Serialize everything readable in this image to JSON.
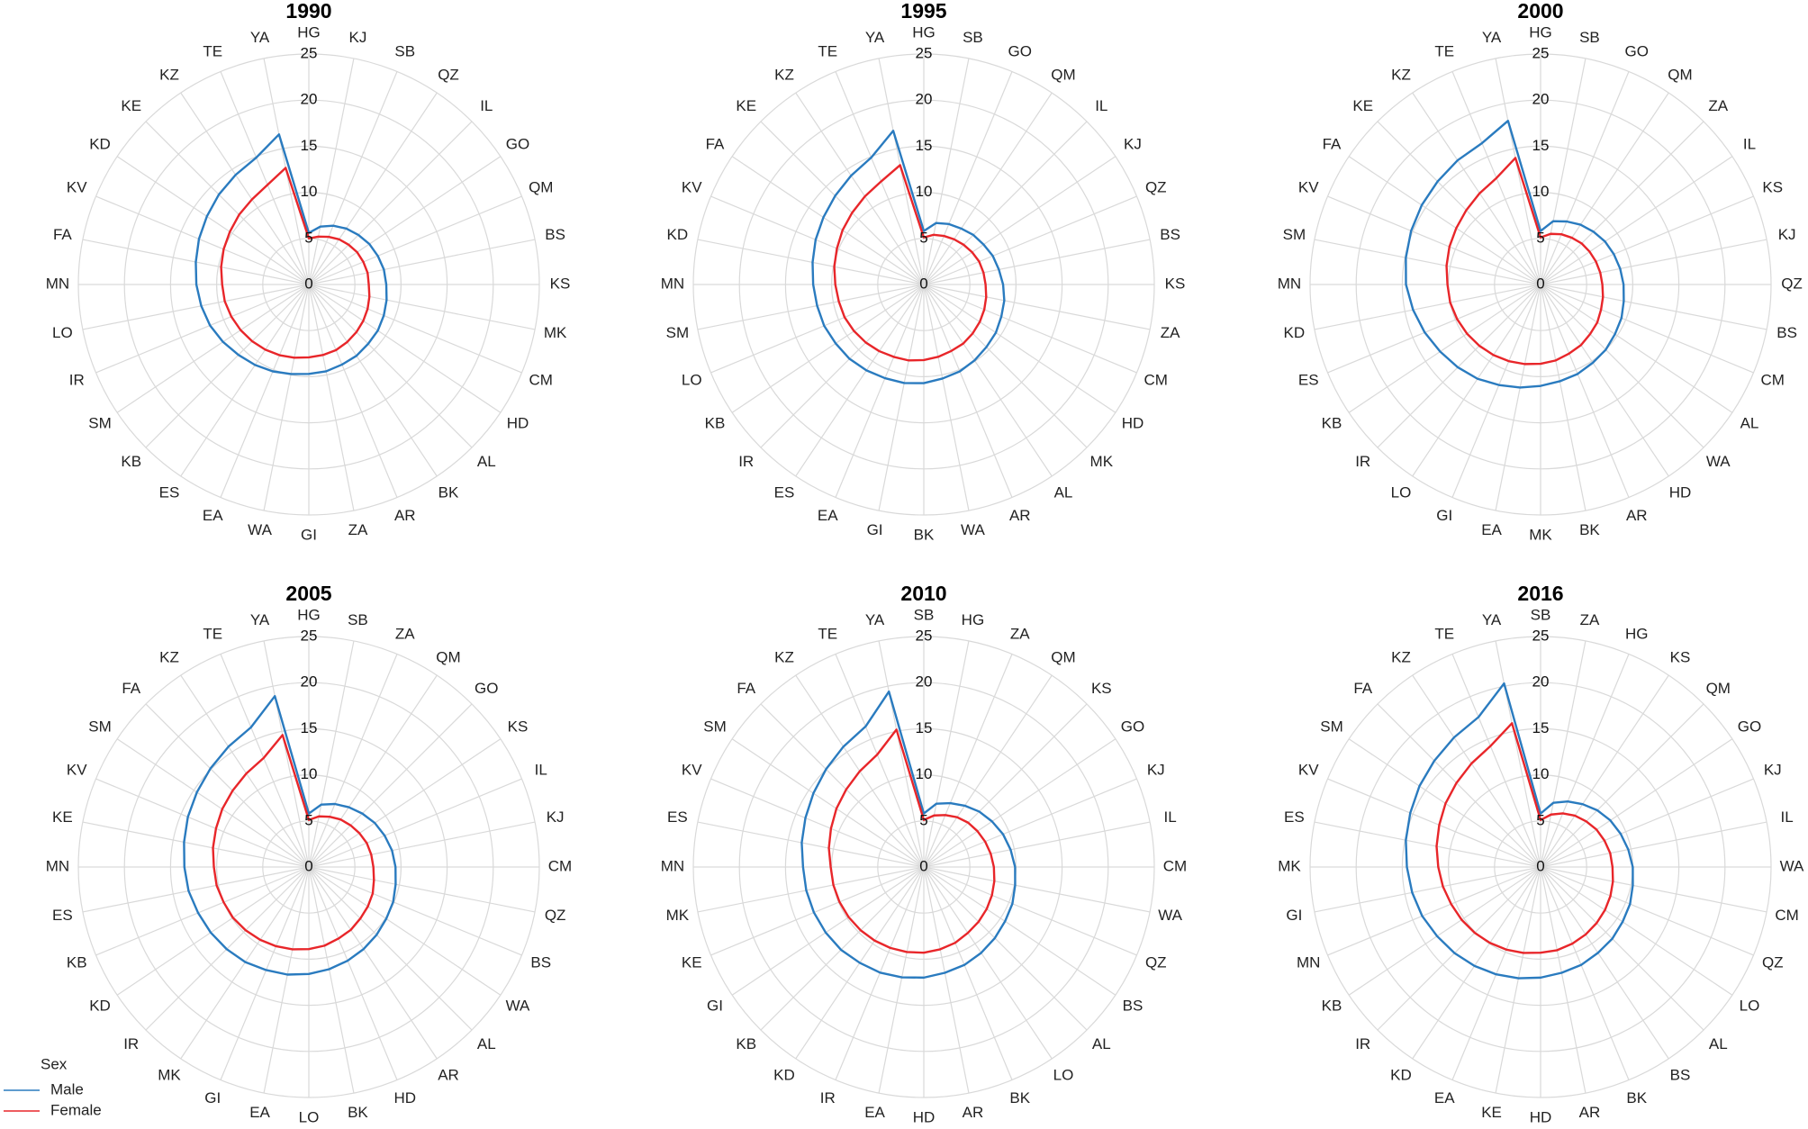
{
  "chart_data": [
    {
      "type": "radar",
      "title": "1990",
      "legend_title": "Sex",
      "ylim": [
        0,
        25
      ],
      "yticks": [
        0,
        5,
        10,
        15,
        20,
        25
      ],
      "grid": true,
      "categories": [
        "HG",
        "KJ",
        "SB",
        "QZ",
        "IL",
        "GO",
        "QM",
        "BS",
        "KS",
        "MK",
        "CM",
        "HD",
        "AL",
        "BK",
        "AR",
        "ZA",
        "GI",
        "WA",
        "EA",
        "ES",
        "KB",
        "SM",
        "IR",
        "LO",
        "MN",
        "FA",
        "KV",
        "KD",
        "KE",
        "KZ",
        "TE",
        "YA"
      ],
      "series": [
        {
          "name": "Male",
          "color": "#2a7bbf",
          "values": [
            5.6,
            6.4,
            6.9,
            7.3,
            7.6,
            7.9,
            8.1,
            8.3,
            8.4,
            8.6,
            8.8,
            9.0,
            9.1,
            9.3,
            9.4,
            9.6,
            9.7,
            9.9,
            10.2,
            10.5,
            10.8,
            11.2,
            11.6,
            11.9,
            12.2,
            12.5,
            12.9,
            13.3,
            13.8,
            14.3,
            14.9,
            16.6
          ]
        },
        {
          "name": "Female",
          "color": "#e8262a",
          "values": [
            5.0,
            5.3,
            5.6,
            5.9,
            6.1,
            6.3,
            6.4,
            6.5,
            6.5,
            6.7,
            6.9,
            7.1,
            7.3,
            7.5,
            7.7,
            7.8,
            7.9,
            8.1,
            8.3,
            8.5,
            8.7,
            8.9,
            9.1,
            9.3,
            9.4,
            9.7,
            10.0,
            10.3,
            10.7,
            11.1,
            11.7,
            12.9
          ]
        }
      ]
    },
    {
      "type": "radar",
      "title": "1995",
      "ylim": [
        0,
        25
      ],
      "yticks": [
        0,
        5,
        10,
        15,
        20,
        25
      ],
      "grid": true,
      "categories": [
        "HG",
        "SB",
        "GO",
        "QM",
        "IL",
        "KJ",
        "QZ",
        "BS",
        "KS",
        "ZA",
        "CM",
        "HD",
        "MK",
        "AL",
        "AR",
        "WA",
        "BK",
        "GI",
        "EA",
        "ES",
        "IR",
        "KB",
        "LO",
        "SM",
        "MN",
        "KD",
        "KV",
        "FA",
        "KE",
        "KZ",
        "TE",
        "YA"
      ],
      "series": [
        {
          "name": "Male",
          "color": "#2a7bbf",
          "values": [
            5.8,
            6.8,
            7.1,
            7.3,
            7.6,
            7.8,
            8.1,
            8.3,
            8.6,
            8.9,
            9.1,
            9.4,
            9.6,
            9.9,
            10.2,
            10.4,
            10.7,
            10.9,
            11.0,
            11.2,
            11.4,
            11.5,
            11.7,
            11.8,
            12.0,
            12.3,
            12.7,
            13.1,
            13.6,
            14.2,
            14.9,
            17.0
          ]
        },
        {
          "name": "Female",
          "color": "#e8262a",
          "values": [
            5.1,
            5.5,
            5.7,
            5.9,
            6.1,
            6.3,
            6.5,
            6.6,
            6.7,
            6.9,
            7.1,
            7.3,
            7.5,
            7.7,
            7.8,
            8.0,
            8.2,
            8.4,
            8.5,
            8.7,
            8.9,
            9.1,
            9.3,
            9.4,
            9.6,
            9.9,
            10.2,
            10.6,
            11.0,
            11.5,
            12.1,
            13.2
          ]
        }
      ]
    },
    {
      "type": "radar",
      "title": "2000",
      "ylim": [
        0,
        25
      ],
      "yticks": [
        0,
        5,
        10,
        15,
        20,
        25
      ],
      "grid": true,
      "categories": [
        "HG",
        "SB",
        "GO",
        "QM",
        "ZA",
        "IL",
        "KS",
        "KJ",
        "QZ",
        "BS",
        "CM",
        "AL",
        "WA",
        "HD",
        "AR",
        "BK",
        "MK",
        "EA",
        "GI",
        "LO",
        "IR",
        "KB",
        "ES",
        "KD",
        "MN",
        "SM",
        "KV",
        "FA",
        "KE",
        "KZ",
        "TE",
        "YA"
      ],
      "series": [
        {
          "name": "Male",
          "color": "#2a7bbf",
          "values": [
            5.8,
            7.0,
            7.4,
            7.8,
            8.1,
            8.4,
            8.6,
            8.8,
            9.0,
            9.2,
            9.5,
            9.7,
            10.0,
            10.2,
            10.5,
            10.7,
            11.0,
            11.4,
            11.8,
            12.3,
            12.7,
            13.1,
            13.6,
            14.1,
            14.6,
            14.9,
            15.2,
            15.5,
            15.8,
            16.2,
            16.6,
            18.1
          ]
        },
        {
          "name": "Female",
          "color": "#e8262a",
          "values": [
            5.1,
            5.6,
            5.9,
            6.1,
            6.3,
            6.4,
            6.5,
            6.6,
            6.7,
            6.9,
            7.1,
            7.4,
            7.6,
            7.9,
            8.1,
            8.4,
            8.6,
            8.8,
            9.0,
            9.2,
            9.4,
            9.6,
            9.8,
            10.0,
            10.1,
            10.4,
            10.7,
            11.0,
            11.4,
            11.9,
            12.5,
            14.0
          ]
        }
      ]
    },
    {
      "type": "radar",
      "title": "2005",
      "ylim": [
        0,
        25
      ],
      "yticks": [
        0,
        5,
        10,
        15,
        20,
        25
      ],
      "grid": true,
      "categories": [
        "HG",
        "SB",
        "ZA",
        "QM",
        "GO",
        "KS",
        "IL",
        "KJ",
        "CM",
        "QZ",
        "BS",
        "WA",
        "AL",
        "AR",
        "HD",
        "BK",
        "LO",
        "EA",
        "GI",
        "MK",
        "IR",
        "KD",
        "KB",
        "ES",
        "MN",
        "KE",
        "KV",
        "SM",
        "FA",
        "KZ",
        "TE",
        "YA"
      ],
      "series": [
        {
          "name": "Male",
          "color": "#2a7bbf",
          "values": [
            5.8,
            6.9,
            7.4,
            7.8,
            8.2,
            8.6,
            8.9,
            9.2,
            9.4,
            9.6,
            9.9,
            10.1,
            10.4,
            10.7,
            11.0,
            11.3,
            11.6,
            11.9,
            12.1,
            12.4,
            12.6,
            12.8,
            13.0,
            13.3,
            13.5,
            13.8,
            14.2,
            14.6,
            15.1,
            15.7,
            16.4,
            18.9
          ]
        },
        {
          "name": "Female",
          "color": "#e8262a",
          "values": [
            5.1,
            5.6,
            5.9,
            6.2,
            6.4,
            6.6,
            6.8,
            6.9,
            7.0,
            7.2,
            7.5,
            7.7,
            7.9,
            8.2,
            8.4,
            8.7,
            8.9,
            9.1,
            9.3,
            9.5,
            9.7,
            9.9,
            10.0,
            10.2,
            10.3,
            10.6,
            10.9,
            11.3,
            11.7,
            12.2,
            12.8,
            14.6
          ]
        }
      ]
    },
    {
      "type": "radar",
      "title": "2010",
      "ylim": [
        0,
        25
      ],
      "yticks": [
        0,
        5,
        10,
        15,
        20,
        25
      ],
      "grid": true,
      "categories": [
        "SB",
        "HG",
        "ZA",
        "QM",
        "KS",
        "GO",
        "KJ",
        "IL",
        "CM",
        "WA",
        "QZ",
        "BS",
        "AL",
        "LO",
        "BK",
        "AR",
        "HD",
        "EA",
        "IR",
        "KD",
        "KB",
        "GI",
        "KE",
        "MK",
        "MN",
        "ES",
        "KV",
        "SM",
        "FA",
        "KZ",
        "TE",
        "YA"
      ],
      "series": [
        {
          "name": "Male",
          "color": "#2a7bbf",
          "values": [
            5.8,
            7.0,
            7.5,
            8.0,
            8.5,
            8.9,
            9.3,
            9.6,
            9.9,
            10.1,
            10.4,
            10.6,
            10.9,
            11.2,
            11.5,
            11.7,
            12.0,
            12.2,
            12.4,
            12.5,
            12.7,
            12.8,
            12.9,
            13.0,
            13.1,
            13.5,
            13.9,
            14.4,
            15.0,
            15.7,
            16.5,
            19.4
          ]
        },
        {
          "name": "Female",
          "color": "#e8262a",
          "values": [
            5.1,
            5.7,
            6.1,
            6.5,
            6.8,
            7.0,
            7.2,
            7.4,
            7.6,
            7.8,
            8.0,
            8.2,
            8.4,
            8.6,
            8.9,
            9.1,
            9.3,
            9.4,
            9.5,
            9.6,
            9.7,
            9.8,
            9.9,
            10.0,
            10.1,
            10.5,
            10.9,
            11.4,
            11.9,
            12.5,
            13.2,
            15.2
          ]
        }
      ]
    },
    {
      "type": "radar",
      "title": "2016",
      "ylim": [
        0,
        25
      ],
      "yticks": [
        0,
        5,
        10,
        15,
        20,
        25
      ],
      "grid": true,
      "categories": [
        "SB",
        "ZA",
        "HG",
        "KS",
        "QM",
        "GO",
        "KJ",
        "IL",
        "WA",
        "CM",
        "QZ",
        "LO",
        "AL",
        "BS",
        "BK",
        "AR",
        "HD",
        "KE",
        "EA",
        "KD",
        "IR",
        "KB",
        "MN",
        "GI",
        "MK",
        "ES",
        "KV",
        "SM",
        "FA",
        "KZ",
        "TE",
        "YA"
      ],
      "series": [
        {
          "name": "Male",
          "color": "#2a7bbf",
          "values": [
            5.8,
            7.1,
            7.7,
            8.2,
            8.7,
            9.1,
            9.4,
            9.7,
            10.0,
            10.2,
            10.5,
            10.7,
            11.0,
            11.2,
            11.5,
            11.7,
            12.0,
            12.3,
            12.6,
            12.9,
            13.2,
            13.5,
            13.9,
            14.2,
            14.5,
            14.9,
            15.3,
            15.8,
            16.3,
            16.9,
            17.6,
            20.3
          ]
        },
        {
          "name": "Female",
          "color": "#e8262a",
          "values": [
            5.1,
            5.8,
            6.3,
            6.7,
            7.0,
            7.3,
            7.5,
            7.7,
            7.8,
            8.0,
            8.2,
            8.4,
            8.6,
            8.8,
            9.0,
            9.2,
            9.3,
            9.5,
            9.7,
            9.9,
            10.1,
            10.3,
            10.5,
            10.8,
            11.1,
            11.5,
            11.9,
            12.4,
            12.9,
            13.5,
            14.2,
            15.9
          ]
        }
      ]
    }
  ]
}
